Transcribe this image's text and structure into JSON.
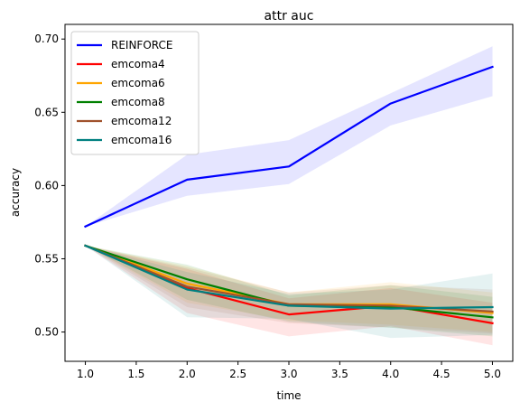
{
  "chart_data": {
    "type": "line",
    "title": "attr auc",
    "xlabel": "time",
    "ylabel": "accuracy",
    "xlim": [
      0.8,
      5.2
    ],
    "ylim": [
      0.48,
      0.71
    ],
    "x_ticks": [
      "1.0",
      "1.5",
      "2.0",
      "2.5",
      "3.0",
      "3.5",
      "4.0",
      "4.5",
      "5.0"
    ],
    "y_ticks": [
      "0.50",
      "0.55",
      "0.60",
      "0.65",
      "0.70"
    ],
    "grid": false,
    "legend_position": "upper-left",
    "x": [
      1,
      2,
      3,
      4,
      5
    ],
    "series": [
      {
        "name": "REINFORCE",
        "color": "#0000ff",
        "values": [
          0.572,
          0.604,
          0.613,
          0.656,
          0.681
        ],
        "lower": [
          0.572,
          0.593,
          0.601,
          0.641,
          0.661
        ],
        "upper": [
          0.572,
          0.621,
          0.631,
          0.663,
          0.695
        ]
      },
      {
        "name": "emcoma4",
        "color": "#ff0000",
        "values": [
          0.559,
          0.53,
          0.512,
          0.518,
          0.506
        ],
        "lower": [
          0.559,
          0.513,
          0.497,
          0.504,
          0.491
        ],
        "upper": [
          0.559,
          0.543,
          0.523,
          0.53,
          0.52
        ]
      },
      {
        "name": "emcoma6",
        "color": "#ffa500",
        "values": [
          0.559,
          0.533,
          0.519,
          0.519,
          0.513
        ],
        "lower": [
          0.559,
          0.52,
          0.508,
          0.505,
          0.5
        ],
        "upper": [
          0.559,
          0.545,
          0.527,
          0.534,
          0.527
        ]
      },
      {
        "name": "emcoma8",
        "color": "#008000",
        "values": [
          0.559,
          0.536,
          0.518,
          0.517,
          0.51
        ],
        "lower": [
          0.559,
          0.522,
          0.507,
          0.503,
          0.497
        ],
        "upper": [
          0.559,
          0.546,
          0.525,
          0.532,
          0.524
        ]
      },
      {
        "name": "emcoma12",
        "color": "#a0522d",
        "values": [
          0.559,
          0.531,
          0.519,
          0.518,
          0.514
        ],
        "lower": [
          0.559,
          0.517,
          0.506,
          0.503,
          0.499
        ],
        "upper": [
          0.559,
          0.544,
          0.527,
          0.532,
          0.529
        ]
      },
      {
        "name": "emcoma16",
        "color": "#008080",
        "values": [
          0.559,
          0.529,
          0.518,
          0.516,
          0.517
        ],
        "lower": [
          0.559,
          0.51,
          0.509,
          0.496,
          0.498
        ],
        "upper": [
          0.559,
          0.541,
          0.526,
          0.529,
          0.54
        ]
      }
    ]
  }
}
